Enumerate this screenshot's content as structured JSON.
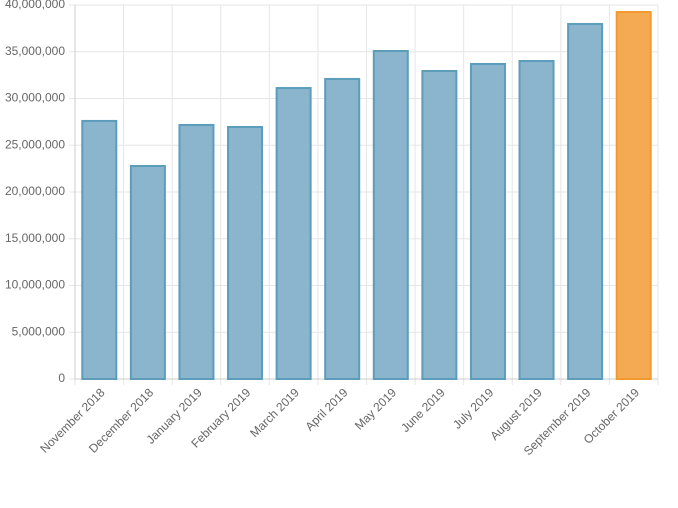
{
  "chart_data": {
    "type": "bar",
    "categories": [
      "November 2018",
      "December 2018",
      "January 2019",
      "February 2019",
      "March 2019",
      "April 2019",
      "May 2019",
      "June 2019",
      "July 2019",
      "August 2019",
      "September 2019",
      "October 2019"
    ],
    "values": [
      27600000,
      22780000,
      27170000,
      26950000,
      31120000,
      32090000,
      35080000,
      32940000,
      33690000,
      34010000,
      37970000,
      39250000
    ],
    "colors": [
      "#8ab5cd",
      "#8ab5cd",
      "#8ab5cd",
      "#8ab5cd",
      "#8ab5cd",
      "#8ab5cd",
      "#8ab5cd",
      "#8ab5cd",
      "#8ab5cd",
      "#8ab5cd",
      "#8ab5cd",
      "#f3aa52"
    ],
    "border_colors": [
      "#5b9dba",
      "#5b9dba",
      "#5b9dba",
      "#5b9dba",
      "#5b9dba",
      "#5b9dba",
      "#5b9dba",
      "#5b9dba",
      "#5b9dba",
      "#5b9dba",
      "#5b9dba",
      "#f39a2e"
    ],
    "ylim": [
      0,
      40000000
    ],
    "yticks": [
      0,
      {
        "value": 5000000,
        "label": "5,000,000"
      },
      {
        "value": 10000000,
        "label": "10,000,000"
      },
      {
        "value": 15000000,
        "label": "15,000,000"
      },
      {
        "value": 20000000,
        "label": "20,000,000"
      },
      {
        "value": 25000000,
        "label": "25,000,000"
      },
      {
        "value": 30000000,
        "label": "30,000,000"
      },
      {
        "value": 35000000,
        "label": "35,000,000"
      },
      {
        "value": 40000000,
        "label": "40,000,000"
      }
    ],
    "grid": true
  }
}
